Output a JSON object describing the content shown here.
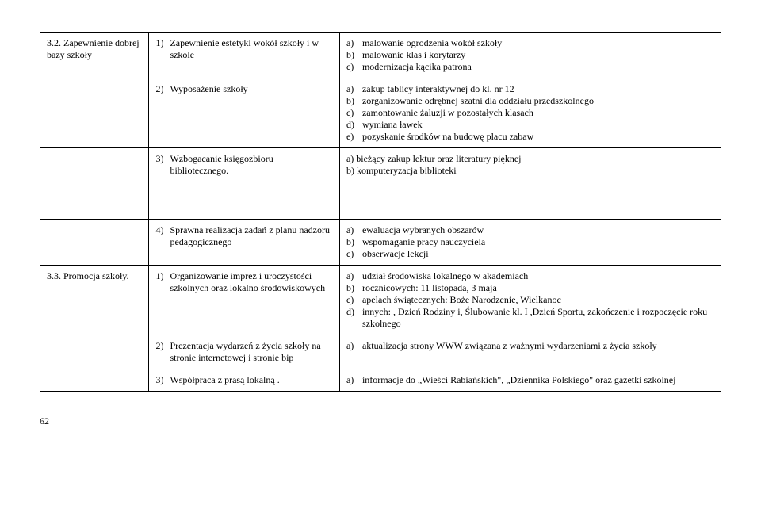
{
  "rows": {
    "r1": {
      "c1_num": "3.2.",
      "c1_text": "Zapewnienie dobrej bazy szkoły",
      "c2_num": "1)",
      "c2_text": "Zapewnienie estetyki wokół szkoły i w szkole",
      "c3": [
        {
          "l": "a)",
          "t": "malowanie ogrodzenia wokół szkoły"
        },
        {
          "l": "b)",
          "t": "malowanie klas i korytarzy"
        },
        {
          "l": "c)",
          "t": "modernizacja kącika patrona"
        }
      ]
    },
    "r2": {
      "c2_num": "2)",
      "c2_text": "Wyposażenie szkoły",
      "c3": [
        {
          "l": "a)",
          "t": "zakup tablicy interaktywnej do kl. nr 12"
        },
        {
          "l": "b)",
          "t": "zorganizowanie odrębnej szatni dla oddziału przedszkolnego"
        },
        {
          "l": "c)",
          "t": "zamontowanie żaluzji w pozostałych klasach"
        },
        {
          "l": "d)",
          "t": "wymiana ławek"
        },
        {
          "l": "e)",
          "t": "pozyskanie środków na budowę placu zabaw"
        }
      ]
    },
    "r3": {
      "c2_num": "3)",
      "c2_text": "Wzbogacanie księgozbioru bibliotecznego.",
      "c3_lines": [
        "a) bieżący zakup lektur oraz literatury pięknej",
        "b) komputeryzacja biblioteki"
      ]
    },
    "r4": {
      "c2_num": "4)",
      "c2_text": "Sprawna realizacja zadań z planu nadzoru pedagogicznego",
      "c3": [
        {
          "l": "a)",
          "t": "ewaluacja wybranych obszarów"
        },
        {
          "l": "b)",
          "t": "wspomaganie pracy nauczyciela"
        },
        {
          "l": "c)",
          "t": "obserwacje lekcji"
        }
      ]
    },
    "r5": {
      "c1_num": "3.3.",
      "c1_text": "Promocja szkoły.",
      "c2_num": "1)",
      "c2_text": "Organizowanie imprez i uroczystości szkolnych oraz lokalno środowiskowych",
      "c3": [
        {
          "l": "a)",
          "t": "udział środowiska lokalnego w akademiach"
        },
        {
          "l": "b)",
          "t": "rocznicowych: 11 listopada, 3 maja"
        },
        {
          "l": "c)",
          "t": "apelach świątecznych: Boże Narodzenie, Wielkanoc"
        },
        {
          "l": "d)",
          "t": "innych: , Dzień Rodziny i, Ślubowanie kl. I ,Dzień Sportu, zakończenie i rozpoczęcie roku szkolnego"
        }
      ]
    },
    "r6": {
      "c2_num": "2)",
      "c2_text": "Prezentacja wydarzeń z życia szkoły na stronie internetowej i stronie bip",
      "c3": [
        {
          "l": "a)",
          "t": "aktualizacja strony WWW  związana z ważnymi wydarzeniami z życia szkoły"
        }
      ]
    },
    "r7": {
      "c2_num": "3)",
      "c2_text": "Współpraca z prasą lokalną .",
      "c3": [
        {
          "l": "a)",
          "t": "informacje do „Wieści Rabiańskich\", „Dziennika Polskiego\" oraz gazetki szkolnej"
        }
      ]
    }
  },
  "page_number": "62"
}
